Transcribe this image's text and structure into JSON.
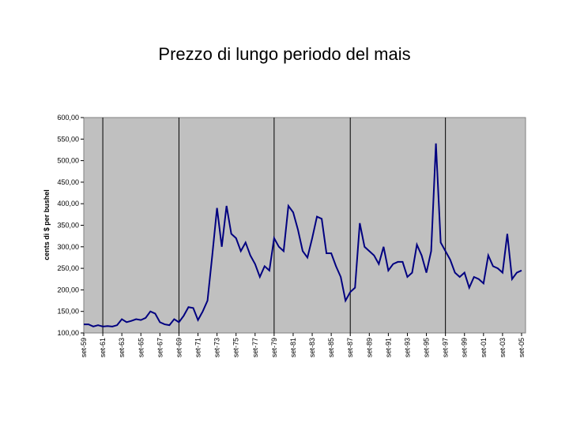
{
  "chart_data": {
    "type": "line",
    "title": "Prezzo di lungo periodo del mais",
    "y_label": "cents di $ per bushel",
    "categories": [
      "set-59",
      null,
      null,
      null,
      "set-61",
      null,
      null,
      null,
      "set-63",
      null,
      null,
      null,
      "set-65",
      null,
      null,
      null,
      "set-67",
      null,
      null,
      null,
      "set-69",
      null,
      null,
      null,
      "set-71",
      null,
      null,
      null,
      "set-73",
      null,
      null,
      null,
      "set-75",
      null,
      null,
      null,
      "set-77",
      null,
      null,
      null,
      "set-79",
      null,
      null,
      null,
      "set-81",
      null,
      null,
      null,
      "set-83",
      null,
      null,
      null,
      "set-85",
      null,
      null,
      null,
      "set-87",
      null,
      null,
      null,
      "set-89",
      null,
      null,
      null,
      "set-91",
      null,
      null,
      null,
      "set-93",
      null,
      null,
      null,
      "set-95",
      null,
      null,
      null,
      "set-97",
      null,
      null,
      null,
      "set-99",
      null,
      null,
      null,
      "set-01",
      null,
      null,
      null,
      "set-03",
      null,
      null,
      null,
      "set-05"
    ],
    "values": [
      120,
      120,
      115,
      118,
      115,
      116,
      115,
      118,
      132,
      125,
      128,
      132,
      130,
      135,
      150,
      145,
      125,
      120,
      118,
      132,
      125,
      140,
      160,
      158,
      130,
      150,
      175,
      280,
      390,
      300,
      395,
      330,
      320,
      290,
      310,
      280,
      260,
      230,
      255,
      245,
      320,
      300,
      290,
      395,
      380,
      340,
      290,
      275,
      320,
      370,
      365,
      285,
      285,
      255,
      230,
      175,
      195,
      205,
      355,
      300,
      290,
      280,
      260,
      300,
      245,
      260,
      265,
      265,
      230,
      240,
      305,
      280,
      240,
      290,
      540,
      310,
      290,
      270,
      240,
      230,
      240,
      205,
      230,
      225,
      215,
      280,
      255,
      250,
      240,
      330,
      225,
      240,
      245
    ],
    "color": "#000080",
    "background": "#c0c0c0",
    "reference_lines": [
      "set-61",
      "set-69",
      "set-79",
      "set-87",
      "set-97"
    ],
    "ylim": [
      100,
      600
    ],
    "yticks": [
      {
        "value": 100,
        "label": "100,00"
      },
      {
        "value": 150,
        "label": "150,00"
      },
      {
        "value": 200,
        "label": "200,00"
      },
      {
        "value": 250,
        "label": "250,00"
      },
      {
        "value": 300,
        "label": "300,00"
      },
      {
        "value": 350,
        "label": "350,00"
      },
      {
        "value": 400,
        "label": "400,00"
      },
      {
        "value": 450,
        "label": "450,00"
      },
      {
        "value": 500,
        "label": "500,00"
      },
      {
        "value": 550,
        "label": "550,00"
      },
      {
        "value": 600,
        "label": "600,00"
      }
    ]
  }
}
